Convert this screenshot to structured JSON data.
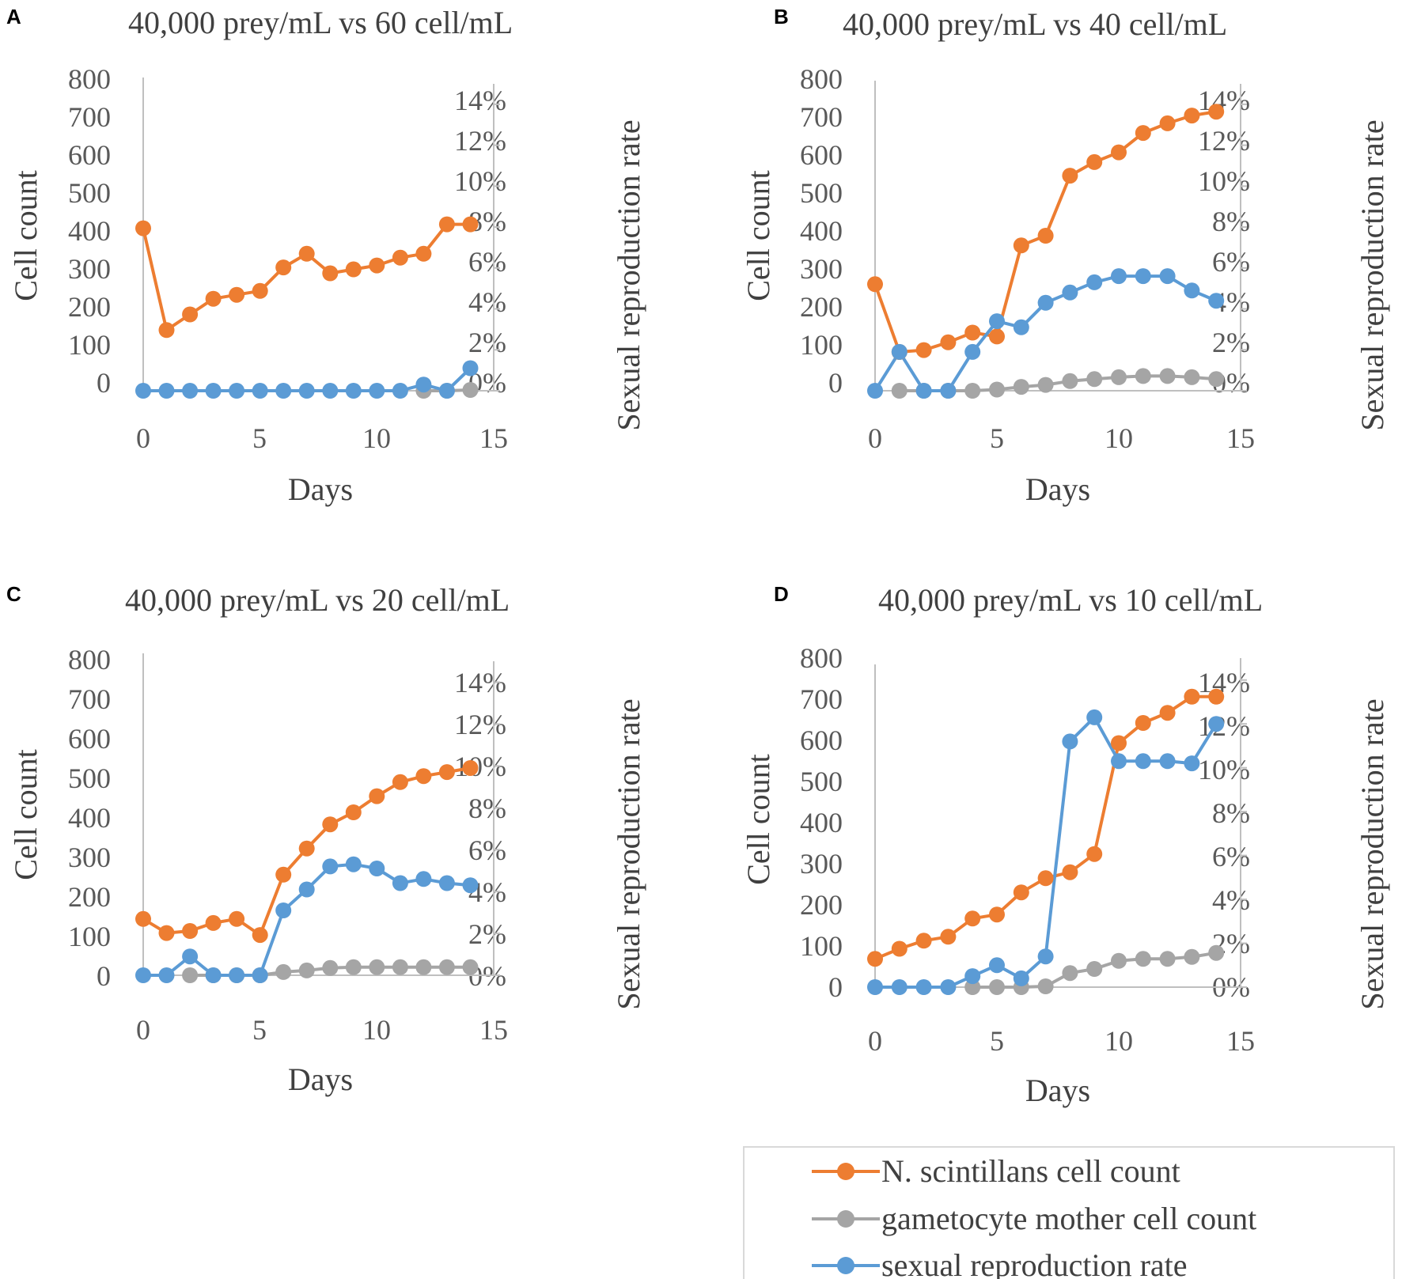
{
  "colors": {
    "ncount": "#ED7D31",
    "gamet": "#A5A5A5",
    "sexrate": "#5B9BD5",
    "axis": "#BFBFBF",
    "text": "#404040"
  },
  "legend": {
    "items": [
      {
        "key": "ncount",
        "label": "N. scintillans cell count"
      },
      {
        "key": "gamet",
        "label": "gametocyte mother cell count"
      },
      {
        "key": "sexrate",
        "label": "sexual reproduction rate"
      }
    ]
  },
  "chart_data": [
    {
      "panel": "A",
      "type": "line",
      "title": "40,000 prey/mL vs 60 cell/mL",
      "xlabel": "Days",
      "ylabel": "Cell count",
      "y2label": "Sexual reproduction rate",
      "xlim": [
        0,
        15
      ],
      "xticks": [
        "0",
        "5",
        "10",
        "15"
      ],
      "ylim": [
        0,
        800
      ],
      "yticks": [
        "0",
        "100",
        "200",
        "300",
        "400",
        "500",
        "600",
        "700",
        "800"
      ],
      "y2lim": [
        0,
        15
      ],
      "y2ticks": [
        "0%",
        "2%",
        "4%",
        "6%",
        "8%",
        "10%",
        "12%",
        "14%"
      ],
      "series": [
        {
          "key": "ncount",
          "axis": "left",
          "x": [
            0,
            1,
            2,
            3,
            4,
            5,
            6,
            7,
            8,
            9,
            10,
            11,
            12,
            13,
            14
          ],
          "values": [
            415,
            155,
            195,
            235,
            245,
            255,
            315,
            350,
            300,
            310,
            320,
            340,
            350,
            425,
            425
          ]
        },
        {
          "key": "gamet",
          "axis": "left",
          "x": [
            12,
            13,
            14
          ],
          "values": [
            0,
            0,
            2
          ]
        },
        {
          "key": "sexrate",
          "axis": "right",
          "x": [
            0,
            1,
            2,
            3,
            4,
            5,
            6,
            7,
            8,
            9,
            10,
            11,
            12,
            13,
            14
          ],
          "values": [
            0,
            0,
            0,
            0,
            0,
            0,
            0,
            0,
            0,
            0,
            0,
            0,
            0.3,
            0,
            1.1
          ]
        }
      ]
    },
    {
      "panel": "B",
      "type": "line",
      "title": "40,000 prey/mL vs 40 cell/mL",
      "xlabel": "Days",
      "ylabel": "Cell count",
      "y2label": "Sexual reproduction rate",
      "xlim": [
        0,
        15
      ],
      "xticks": [
        "0",
        "5",
        "10",
        "15"
      ],
      "ylim": [
        0,
        800
      ],
      "yticks": [
        "0",
        "100",
        "200",
        "300",
        "400",
        "500",
        "600",
        "700",
        "800"
      ],
      "y2lim": [
        0,
        15
      ],
      "y2ticks": [
        "0%",
        "2%",
        "4%",
        "6%",
        "8%",
        "10%",
        "12%",
        "14%"
      ],
      "series": [
        {
          "key": "ncount",
          "axis": "left",
          "x": [
            0,
            1,
            2,
            3,
            4,
            5,
            6,
            7,
            8,
            9,
            10,
            11,
            12,
            13,
            14
          ],
          "values": [
            275,
            100,
            105,
            125,
            150,
            140,
            375,
            400,
            555,
            590,
            615,
            665,
            690,
            710,
            720
          ]
        },
        {
          "key": "gamet",
          "axis": "left",
          "x": [
            1,
            2,
            3,
            4,
            5,
            6,
            7,
            8,
            9,
            10,
            11,
            12,
            13,
            14
          ],
          "values": [
            0,
            0,
            0,
            0,
            3,
            10,
            15,
            25,
            30,
            35,
            38,
            38,
            35,
            30
          ]
        },
        {
          "key": "sexrate",
          "axis": "right",
          "x": [
            0,
            1,
            2,
            3,
            4,
            5,
            6,
            7,
            8,
            9,
            10,
            11,
            12,
            13,
            14
          ],
          "values": [
            0,
            1.9,
            0,
            0,
            1.9,
            3.4,
            3.1,
            4.3,
            4.8,
            5.3,
            5.6,
            5.6,
            5.6,
            4.9,
            4.4
          ]
        }
      ]
    },
    {
      "panel": "C",
      "type": "line",
      "title": "40,000 prey/mL vs 20 cell/mL",
      "xlabel": "Days",
      "ylabel": "Cell count",
      "y2label": "Sexual reproduction rate",
      "xlim": [
        0,
        15
      ],
      "xticks": [
        "0",
        "5",
        "10",
        "15"
      ],
      "ylim": [
        0,
        800
      ],
      "yticks": [
        "0",
        "100",
        "200",
        "300",
        "400",
        "500",
        "600",
        "700",
        "800"
      ],
      "y2lim": [
        0,
        15
      ],
      "y2ticks": [
        "0%",
        "2%",
        "4%",
        "6%",
        "8%",
        "10%",
        "12%",
        "14%"
      ],
      "series": [
        {
          "key": "ncount",
          "axis": "left",
          "x": [
            0,
            1,
            2,
            3,
            4,
            5,
            6,
            7,
            8,
            9,
            10,
            11,
            12,
            13,
            14
          ],
          "values": [
            140,
            105,
            110,
            130,
            140,
            100,
            250,
            315,
            375,
            405,
            445,
            480,
            495,
            505,
            515
          ]
        },
        {
          "key": "gamet",
          "axis": "left",
          "x": [
            2,
            3,
            4,
            5,
            6,
            7,
            8,
            9,
            10,
            11,
            12,
            13,
            14
          ],
          "values": [
            0,
            0,
            0,
            0,
            8,
            12,
            18,
            20,
            20,
            20,
            20,
            20,
            20
          ]
        },
        {
          "key": "sexrate",
          "axis": "right",
          "x": [
            0,
            1,
            2,
            3,
            4,
            5,
            6,
            7,
            8,
            9,
            10,
            11,
            12,
            13,
            14
          ],
          "values": [
            0,
            0,
            0.9,
            0,
            0,
            0,
            3.1,
            4.1,
            5.2,
            5.3,
            5.1,
            4.4,
            4.6,
            4.4,
            4.3
          ]
        }
      ]
    },
    {
      "panel": "D",
      "type": "line",
      "title": "40,000 prey/mL vs 10 cell/mL",
      "xlabel": "Days",
      "ylabel": "Cell count",
      "y2label": "Sexual reproduction rate",
      "xlim": [
        0,
        15
      ],
      "xticks": [
        "0",
        "5",
        "10",
        "15"
      ],
      "ylim": [
        0,
        800
      ],
      "yticks": [
        "0",
        "100",
        "200",
        "300",
        "400",
        "500",
        "600",
        "700",
        "800"
      ],
      "y2lim": [
        0,
        15
      ],
      "y2ticks": [
        "0%",
        "2%",
        "4%",
        "6%",
        "8%",
        "10%",
        "12%",
        "14%"
      ],
      "series": [
        {
          "key": "ncount",
          "axis": "left",
          "x": [
            0,
            1,
            2,
            3,
            4,
            5,
            6,
            7,
            8,
            9,
            10,
            11,
            12,
            13,
            14
          ],
          "values": [
            70,
            95,
            115,
            125,
            170,
            180,
            235,
            270,
            285,
            330,
            605,
            655,
            680,
            720,
            720
          ]
        },
        {
          "key": "gamet",
          "axis": "left",
          "x": [
            4,
            5,
            6,
            7,
            8,
            9,
            10,
            11,
            12,
            13,
            14
          ],
          "values": [
            0,
            0,
            0,
            2,
            35,
            45,
            65,
            70,
            70,
            75,
            85
          ]
        },
        {
          "key": "sexrate",
          "axis": "right",
          "x": [
            0,
            1,
            2,
            3,
            4,
            5,
            6,
            7,
            8,
            9,
            10,
            11,
            12,
            13,
            14
          ],
          "values": [
            0,
            0,
            0,
            0,
            0.5,
            1.0,
            0.4,
            1.4,
            11.2,
            12.3,
            10.3,
            10.3,
            10.3,
            10.2,
            12.0
          ]
        }
      ]
    }
  ]
}
